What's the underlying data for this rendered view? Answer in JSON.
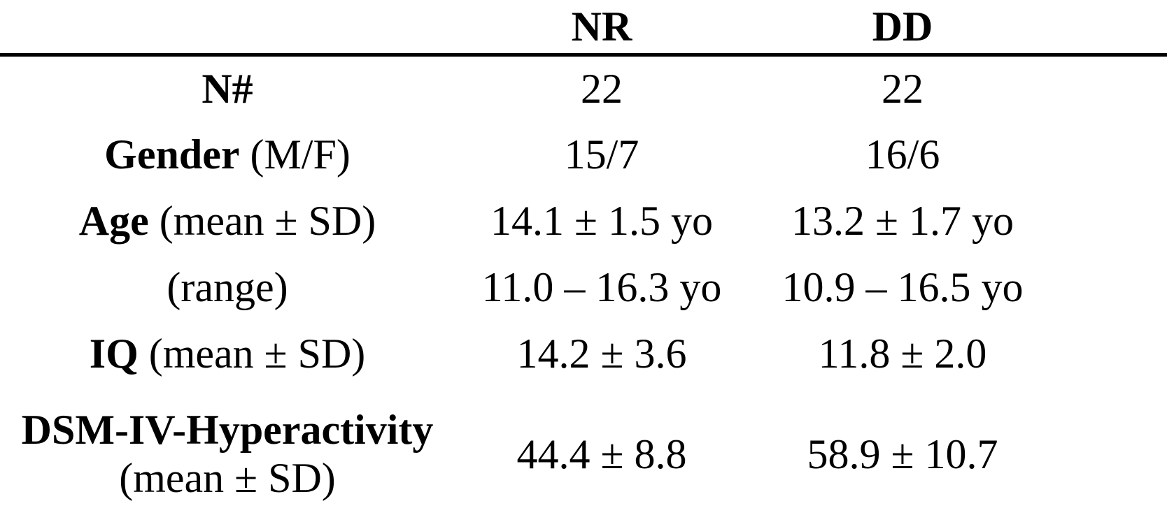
{
  "table": {
    "header": {
      "label_col": "",
      "nr": "NR",
      "dd": "DD"
    },
    "rows": [
      {
        "label_bold": "N#",
        "label_rest": "",
        "nr": "22",
        "dd": "22"
      },
      {
        "label_bold": "Gender",
        "label_rest": " (M/F)",
        "nr": "15/7",
        "dd": "16/6"
      },
      {
        "label_bold": "Age",
        "label_rest": " (mean ± SD)",
        "nr": "14.1 ± 1.5 yo",
        "dd": "13.2 ± 1.7 yo"
      },
      {
        "label_bold": "",
        "label_rest": "(range)",
        "nr": "11.0 – 16.3 yo",
        "dd": "10.9 – 16.5 yo"
      },
      {
        "label_bold": "IQ",
        "label_rest": " (mean ± SD)",
        "nr": "14.2 ± 3.6",
        "dd": "11.8 ± 2.0"
      },
      {
        "label_bold": "DSM-IV-Hyperactivity",
        "label_rest": "(mean ± SD)",
        "nr": "44.4 ± 8.8",
        "dd": "58.9 ± 10.7"
      }
    ],
    "colors": {
      "text": "#000000",
      "background": "#ffffff",
      "rule": "#000000"
    }
  }
}
